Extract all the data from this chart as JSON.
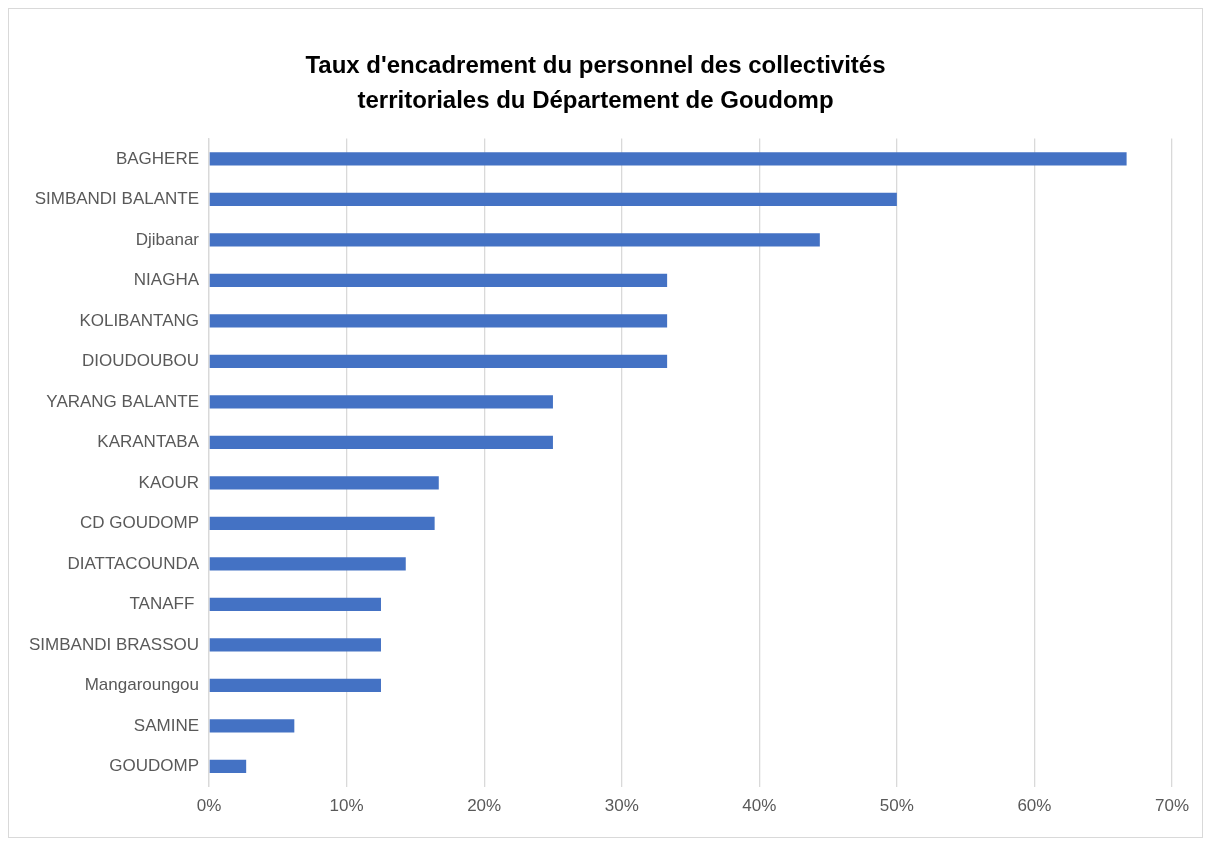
{
  "chart_data": {
    "type": "bar",
    "orientation": "horizontal",
    "title": "Taux d'encadrement du personnel des collectivités territoriales du Département de Goudomp",
    "categories": [
      "BAGHERE",
      "SIMBANDI BALANTE",
      "Djibanar",
      "NIAGHA",
      "KOLIBANTANG",
      "DIOUDOUBOU",
      "YARANG BALANTE",
      "KARANTABA",
      "KAOUR",
      "CD GOUDOMP",
      "DIATTACOUNDA",
      "TANAFF ",
      "SIMBANDI BRASSOU",
      "Mangaroungou",
      "SAMINE",
      "GOUDOMP"
    ],
    "values": [
      66.7,
      50,
      44.4,
      33.3,
      33.3,
      33.3,
      25,
      25,
      16.7,
      16.4,
      14.3,
      12.5,
      12.5,
      12.5,
      6.2,
      2.7
    ],
    "color": "#4472c4",
    "xlim": [
      0,
      70
    ],
    "xticks": [
      {
        "value": 0,
        "label": "0%"
      },
      {
        "value": 10,
        "label": "10%"
      },
      {
        "value": 20,
        "label": "20%"
      },
      {
        "value": 30,
        "label": "30%"
      },
      {
        "value": 40,
        "label": "40%"
      },
      {
        "value": 50,
        "label": "50%"
      },
      {
        "value": 60,
        "label": "60%"
      },
      {
        "value": 70,
        "label": "70%"
      }
    ],
    "grid": "x"
  }
}
